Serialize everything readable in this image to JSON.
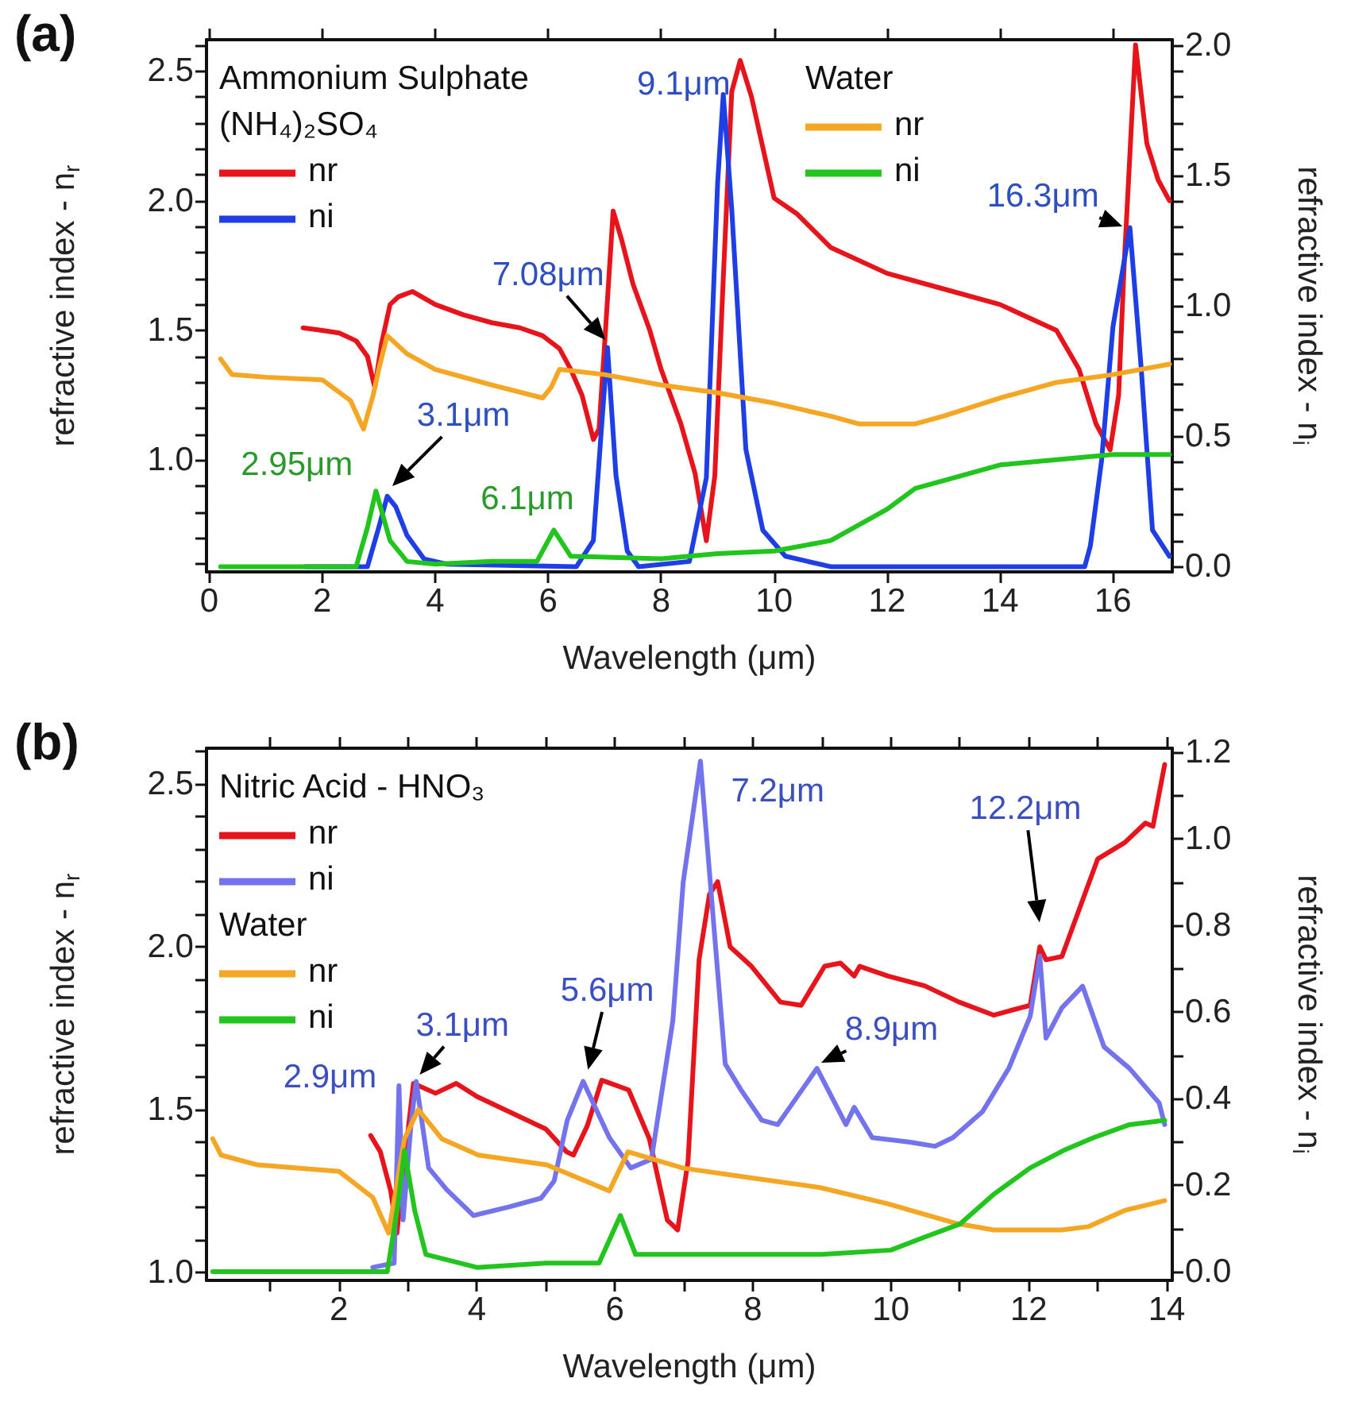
{
  "chart_data": [
    {
      "type": "line",
      "title": "(a)",
      "xlabel": "Wavelength (μm)",
      "ylabel": "refractive index - n$_{r}$",
      "y2label": "refractive index - n$_{i}$",
      "legend_title": [
        "Ammonium Sulphate\n(NH₄)₂SO₄",
        "Water"
      ],
      "legend": [
        "top left",
        "top"
      ],
      "xlim": [
        -0.05,
        17.05
      ],
      "xticks": [
        0,
        2,
        4,
        6,
        8,
        10,
        12,
        14,
        16
      ],
      "ylim": [
        0.57,
        2.62
      ],
      "yticks": [
        {
          "value": 0.6,
          "label": null
        },
        {
          "value": 0.7,
          "label": null
        },
        {
          "value": 0.8,
          "label": null
        },
        {
          "value": 0.9,
          "label": null
        },
        {
          "value": 1.0,
          "label": "1.0"
        },
        {
          "value": 1.1,
          "label": null
        },
        {
          "value": 1.2,
          "label": null
        },
        {
          "value": 1.3,
          "label": null
        },
        {
          "value": 1.4,
          "label": null
        },
        {
          "value": 1.5,
          "label": "1.5"
        },
        {
          "value": 1.6,
          "label": null
        },
        {
          "value": 1.7,
          "label": null
        },
        {
          "value": 1.8,
          "label": null
        },
        {
          "value": 1.9,
          "label": null
        },
        {
          "value": 2.0,
          "label": "2.0"
        },
        {
          "value": 2.1,
          "label": null
        },
        {
          "value": 2.2,
          "label": null
        },
        {
          "value": 2.3,
          "label": null
        },
        {
          "value": 2.4,
          "label": null
        },
        {
          "value": 2.5,
          "label": "2.5"
        },
        {
          "value": 2.6,
          "label": null
        }
      ],
      "y2lim": [
        -0.02,
        2.02
      ],
      "y2ticks": [
        {
          "value": 0,
          "label": "0.0"
        },
        {
          "value": 0.1,
          "label": null
        },
        {
          "value": 0.2,
          "label": null
        },
        {
          "value": 0.3,
          "label": null
        },
        {
          "value": 0.4,
          "label": null
        },
        {
          "value": 0.5,
          "label": "0.5"
        },
        {
          "value": 0.6,
          "label": null
        },
        {
          "value": 0.7,
          "label": null
        },
        {
          "value": 0.8,
          "label": null
        },
        {
          "value": 0.9,
          "label": null
        },
        {
          "value": 1.0,
          "label": "1.0"
        },
        {
          "value": 1.1,
          "label": null
        },
        {
          "value": 1.2,
          "label": null
        },
        {
          "value": 1.3,
          "label": null
        },
        {
          "value": 1.4,
          "label": null
        },
        {
          "value": 1.5,
          "label": "1.5"
        },
        {
          "value": 1.6,
          "label": null
        },
        {
          "value": 1.7,
          "label": null
        },
        {
          "value": 1.8,
          "label": null
        },
        {
          "value": 1.9,
          "label": null
        },
        {
          "value": 2.0,
          "label": "2.0"
        }
      ],
      "series": [
        {
          "name": "nr",
          "color": "#e8141c",
          "x": [
            1.66,
            2.0,
            2.3,
            2.6,
            2.8,
            2.93,
            3.05,
            3.2,
            3.35,
            3.6,
            4.0,
            4.5,
            5.0,
            5.5,
            5.9,
            6.2,
            6.4,
            6.6,
            6.8,
            6.9,
            7.0,
            7.15,
            7.3,
            7.5,
            7.8,
            8.0,
            8.35,
            8.6,
            8.8,
            8.95,
            9.1,
            9.25,
            9.4,
            9.6,
            10.0,
            10.4,
            11.0,
            12.0,
            13.0,
            14.0,
            15.0,
            15.4,
            15.7,
            15.95,
            16.1,
            16.2,
            16.4,
            16.6,
            16.8,
            17.0
          ],
          "values": [
            1.51,
            1.5,
            1.49,
            1.46,
            1.4,
            1.28,
            1.45,
            1.6,
            1.63,
            1.65,
            1.6,
            1.56,
            1.53,
            1.51,
            1.48,
            1.43,
            1.35,
            1.25,
            1.08,
            1.12,
            1.45,
            1.96,
            1.85,
            1.68,
            1.5,
            1.35,
            1.14,
            0.95,
            0.69,
            0.94,
            1.7,
            2.42,
            2.54,
            2.4,
            2.01,
            1.95,
            1.82,
            1.72,
            1.66,
            1.6,
            1.5,
            1.35,
            1.14,
            1.04,
            1.25,
            1.76,
            2.6,
            2.22,
            2.08,
            2.0
          ]
        },
        {
          "name": "ni",
          "axis": "y2",
          "color": "#1f3fe6",
          "x": [
            1.7,
            2.8,
            3.0,
            3.15,
            3.3,
            3.5,
            3.8,
            4.2,
            6.5,
            6.8,
            6.95,
            7.05,
            7.2,
            7.4,
            7.6,
            8.5,
            8.8,
            9.0,
            9.1,
            9.25,
            9.5,
            9.8,
            10.2,
            11.0,
            15.5,
            15.6,
            15.8,
            16.0,
            16.3,
            16.5,
            16.7,
            17.0
          ],
          "values": [
            0.0,
            0.0,
            0.15,
            0.27,
            0.23,
            0.12,
            0.03,
            0.01,
            0.0,
            0.1,
            0.55,
            0.84,
            0.35,
            0.06,
            0.0,
            0.02,
            0.34,
            1.47,
            1.81,
            1.37,
            0.45,
            0.14,
            0.04,
            0.0,
            0.0,
            0.08,
            0.41,
            0.92,
            1.3,
            0.76,
            0.14,
            0.04
          ]
        },
        {
          "name": "nr",
          "color": "#f5a623",
          "x": [
            0.2,
            0.4,
            1.0,
            2.0,
            2.5,
            2.73,
            2.9,
            3.0,
            3.15,
            3.5,
            4.0,
            5.0,
            5.9,
            6.05,
            6.2,
            7.0,
            8.0,
            9.0,
            10.0,
            11.0,
            11.5,
            12.5,
            13.0,
            14.0,
            15.0,
            16.0,
            17.0
          ],
          "values": [
            1.39,
            1.33,
            1.32,
            1.31,
            1.23,
            1.12,
            1.25,
            1.35,
            1.48,
            1.41,
            1.35,
            1.29,
            1.24,
            1.28,
            1.35,
            1.33,
            1.29,
            1.26,
            1.22,
            1.17,
            1.14,
            1.14,
            1.17,
            1.24,
            1.3,
            1.33,
            1.37
          ]
        },
        {
          "name": "ni",
          "axis": "y2",
          "color": "#22c41e",
          "x": [
            0.2,
            2.6,
            2.8,
            2.95,
            3.2,
            3.5,
            4.0,
            5.0,
            5.8,
            6.1,
            6.4,
            8.0,
            9.0,
            10.0,
            11.0,
            12.0,
            12.5,
            13.0,
            14.0,
            15.0,
            16.0,
            17.0
          ],
          "values": [
            0.0,
            0.0,
            0.15,
            0.29,
            0.1,
            0.02,
            0.01,
            0.02,
            0.02,
            0.14,
            0.04,
            0.03,
            0.05,
            0.06,
            0.1,
            0.22,
            0.3,
            0.33,
            0.39,
            0.41,
            0.43,
            0.43
          ]
        }
      ],
      "annotations": [
        "9.1μm",
        "7.08μm",
        "3.1μm",
        "2.95μm",
        "6.1μm",
        "16.3μm"
      ]
    },
    {
      "type": "line",
      "title": "(b)",
      "xlabel": "Wavelength (μm)",
      "ylabel": "refractive index - n$_{r}$",
      "y2label": "refractive index - n$_{i}$",
      "legend_title": [
        "Nitric Acid - HNO₃",
        "Water"
      ],
      "legend": [
        "top left",
        "top left"
      ],
      "xlim": [
        0.08,
        14.08
      ],
      "xticks": [
        {
          "value": 1,
          "label": null
        },
        2,
        {
          "value": 3,
          "label": null
        },
        4,
        {
          "value": 5,
          "label": null
        },
        6,
        {
          "value": 7,
          "label": null
        },
        8,
        {
          "value": 9,
          "label": null
        },
        10,
        {
          "value": 11,
          "label": null
        },
        12,
        {
          "value": 13,
          "label": null
        },
        14
      ],
      "ylim": [
        0.975,
        2.61
      ],
      "yticks": [
        {
          "value": 1.0,
          "label": "1.0"
        },
        {
          "value": 1.1,
          "label": null
        },
        {
          "value": 1.2,
          "label": null
        },
        {
          "value": 1.3,
          "label": null
        },
        {
          "value": 1.4,
          "label": null
        },
        1.5,
        {
          "value": 1.6,
          "label": null
        },
        {
          "value": 1.7,
          "label": null
        },
        {
          "value": 1.8,
          "label": null
        },
        {
          "value": 1.9,
          "label": null
        },
        {
          "value": 2.0,
          "label": "2.0"
        },
        {
          "value": 2.1,
          "label": null
        },
        {
          "value": 2.2,
          "label": null
        },
        {
          "value": 2.3,
          "label": null
        },
        {
          "value": 2.4,
          "label": null
        },
        2.5,
        {
          "value": 2.6,
          "label": null
        }
      ],
      "y2lim": [
        -0.02,
        1.21
      ],
      "y2ticks": [
        {
          "value": 0,
          "label": "0.0"
        },
        {
          "value": 0.1,
          "label": null
        },
        0.2,
        {
          "value": 0.3,
          "label": null
        },
        0.4,
        {
          "value": 0.5,
          "label": null
        },
        0.6,
        {
          "value": 0.7,
          "label": null
        },
        0.8,
        {
          "value": 0.9,
          "label": null
        },
        {
          "value": 1.0,
          "label": "1.0"
        },
        {
          "value": 1.1,
          "label": null
        },
        1.2
      ],
      "series": [
        {
          "name": "nr",
          "color": "#e8141c",
          "x": [
            2.46,
            2.6,
            2.75,
            2.84,
            2.95,
            3.08,
            3.4,
            3.7,
            4.0,
            4.5,
            5.0,
            5.3,
            5.4,
            5.6,
            5.81,
            6.2,
            6.5,
            6.76,
            6.91,
            7.06,
            7.22,
            7.37,
            7.49,
            7.67,
            7.98,
            8.4,
            8.7,
            9.04,
            9.27,
            9.47,
            9.55,
            9.96,
            10.49,
            10.99,
            11.49,
            12.02,
            12.16,
            12.25,
            12.48,
            13.0,
            13.39,
            13.69,
            13.8,
            13.97
          ],
          "values": [
            1.42,
            1.37,
            1.25,
            1.12,
            1.34,
            1.58,
            1.55,
            1.58,
            1.54,
            1.49,
            1.44,
            1.37,
            1.36,
            1.45,
            1.59,
            1.56,
            1.41,
            1.16,
            1.13,
            1.34,
            1.96,
            2.16,
            2.2,
            2.0,
            1.94,
            1.83,
            1.82,
            1.94,
            1.95,
            1.91,
            1.94,
            1.91,
            1.88,
            1.83,
            1.79,
            1.82,
            2.0,
            1.96,
            1.97,
            2.27,
            2.32,
            2.38,
            2.37,
            2.56
          ]
        },
        {
          "name": "ni",
          "axis": "y2",
          "color": "#7373ee",
          "x": [
            2.49,
            2.8,
            2.87,
            2.93,
            3.05,
            3.12,
            3.2,
            3.3,
            3.56,
            3.95,
            4.47,
            4.93,
            5.12,
            5.31,
            5.54,
            5.92,
            6.23,
            6.53,
            6.84,
            6.99,
            7.24,
            7.45,
            7.6,
            7.83,
            8.13,
            8.36,
            8.93,
            9.35,
            9.47,
            9.73,
            10.26,
            10.64,
            10.9,
            11.33,
            11.71,
            12.02,
            12.16,
            12.25,
            12.48,
            12.78,
            13.09,
            13.46,
            13.89,
            13.97
          ],
          "values": [
            0.01,
            0.02,
            0.43,
            0.12,
            0.35,
            0.44,
            0.35,
            0.24,
            0.19,
            0.13,
            0.15,
            0.17,
            0.21,
            0.35,
            0.44,
            0.31,
            0.24,
            0.26,
            0.58,
            0.9,
            1.18,
            0.77,
            0.48,
            0.42,
            0.35,
            0.34,
            0.47,
            0.34,
            0.38,
            0.31,
            0.3,
            0.29,
            0.31,
            0.37,
            0.47,
            0.59,
            0.73,
            0.54,
            0.61,
            0.66,
            0.52,
            0.47,
            0.39,
            0.34
          ]
        },
        {
          "name": "nr",
          "color": "#f5a623",
          "x": [
            0.17,
            0.29,
            0.82,
            2.0,
            2.49,
            2.72,
            2.95,
            3.15,
            3.49,
            4.02,
            5.01,
            5.92,
            6.19,
            6.99,
            7.98,
            8.98,
            9.96,
            10.95,
            11.49,
            12.48,
            12.86,
            13.39,
            13.97
          ],
          "values": [
            1.41,
            1.36,
            1.33,
            1.31,
            1.23,
            1.12,
            1.41,
            1.5,
            1.41,
            1.36,
            1.33,
            1.25,
            1.37,
            1.32,
            1.29,
            1.26,
            1.21,
            1.15,
            1.13,
            1.13,
            1.14,
            1.19,
            1.22
          ]
        },
        {
          "name": "ni",
          "axis": "y2",
          "color": "#22c41e",
          "x": [
            0.17,
            2.7,
            2.85,
            2.95,
            3.1,
            3.26,
            4.0,
            5.0,
            5.77,
            6.08,
            6.3,
            7.0,
            8.0,
            9.0,
            10.0,
            10.49,
            11.0,
            11.5,
            12.02,
            12.5,
            12.94,
            13.46,
            13.97
          ],
          "values": [
            0.0,
            0.0,
            0.15,
            0.28,
            0.14,
            0.04,
            0.01,
            0.02,
            0.02,
            0.13,
            0.04,
            0.04,
            0.04,
            0.04,
            0.05,
            0.08,
            0.11,
            0.18,
            0.24,
            0.28,
            0.31,
            0.34,
            0.35
          ]
        }
      ],
      "annotations": [
        "2.9μm",
        "3.1μm",
        "5.6μm",
        "7.2μm",
        "8.9μm",
        "12.2μm"
      ]
    }
  ]
}
